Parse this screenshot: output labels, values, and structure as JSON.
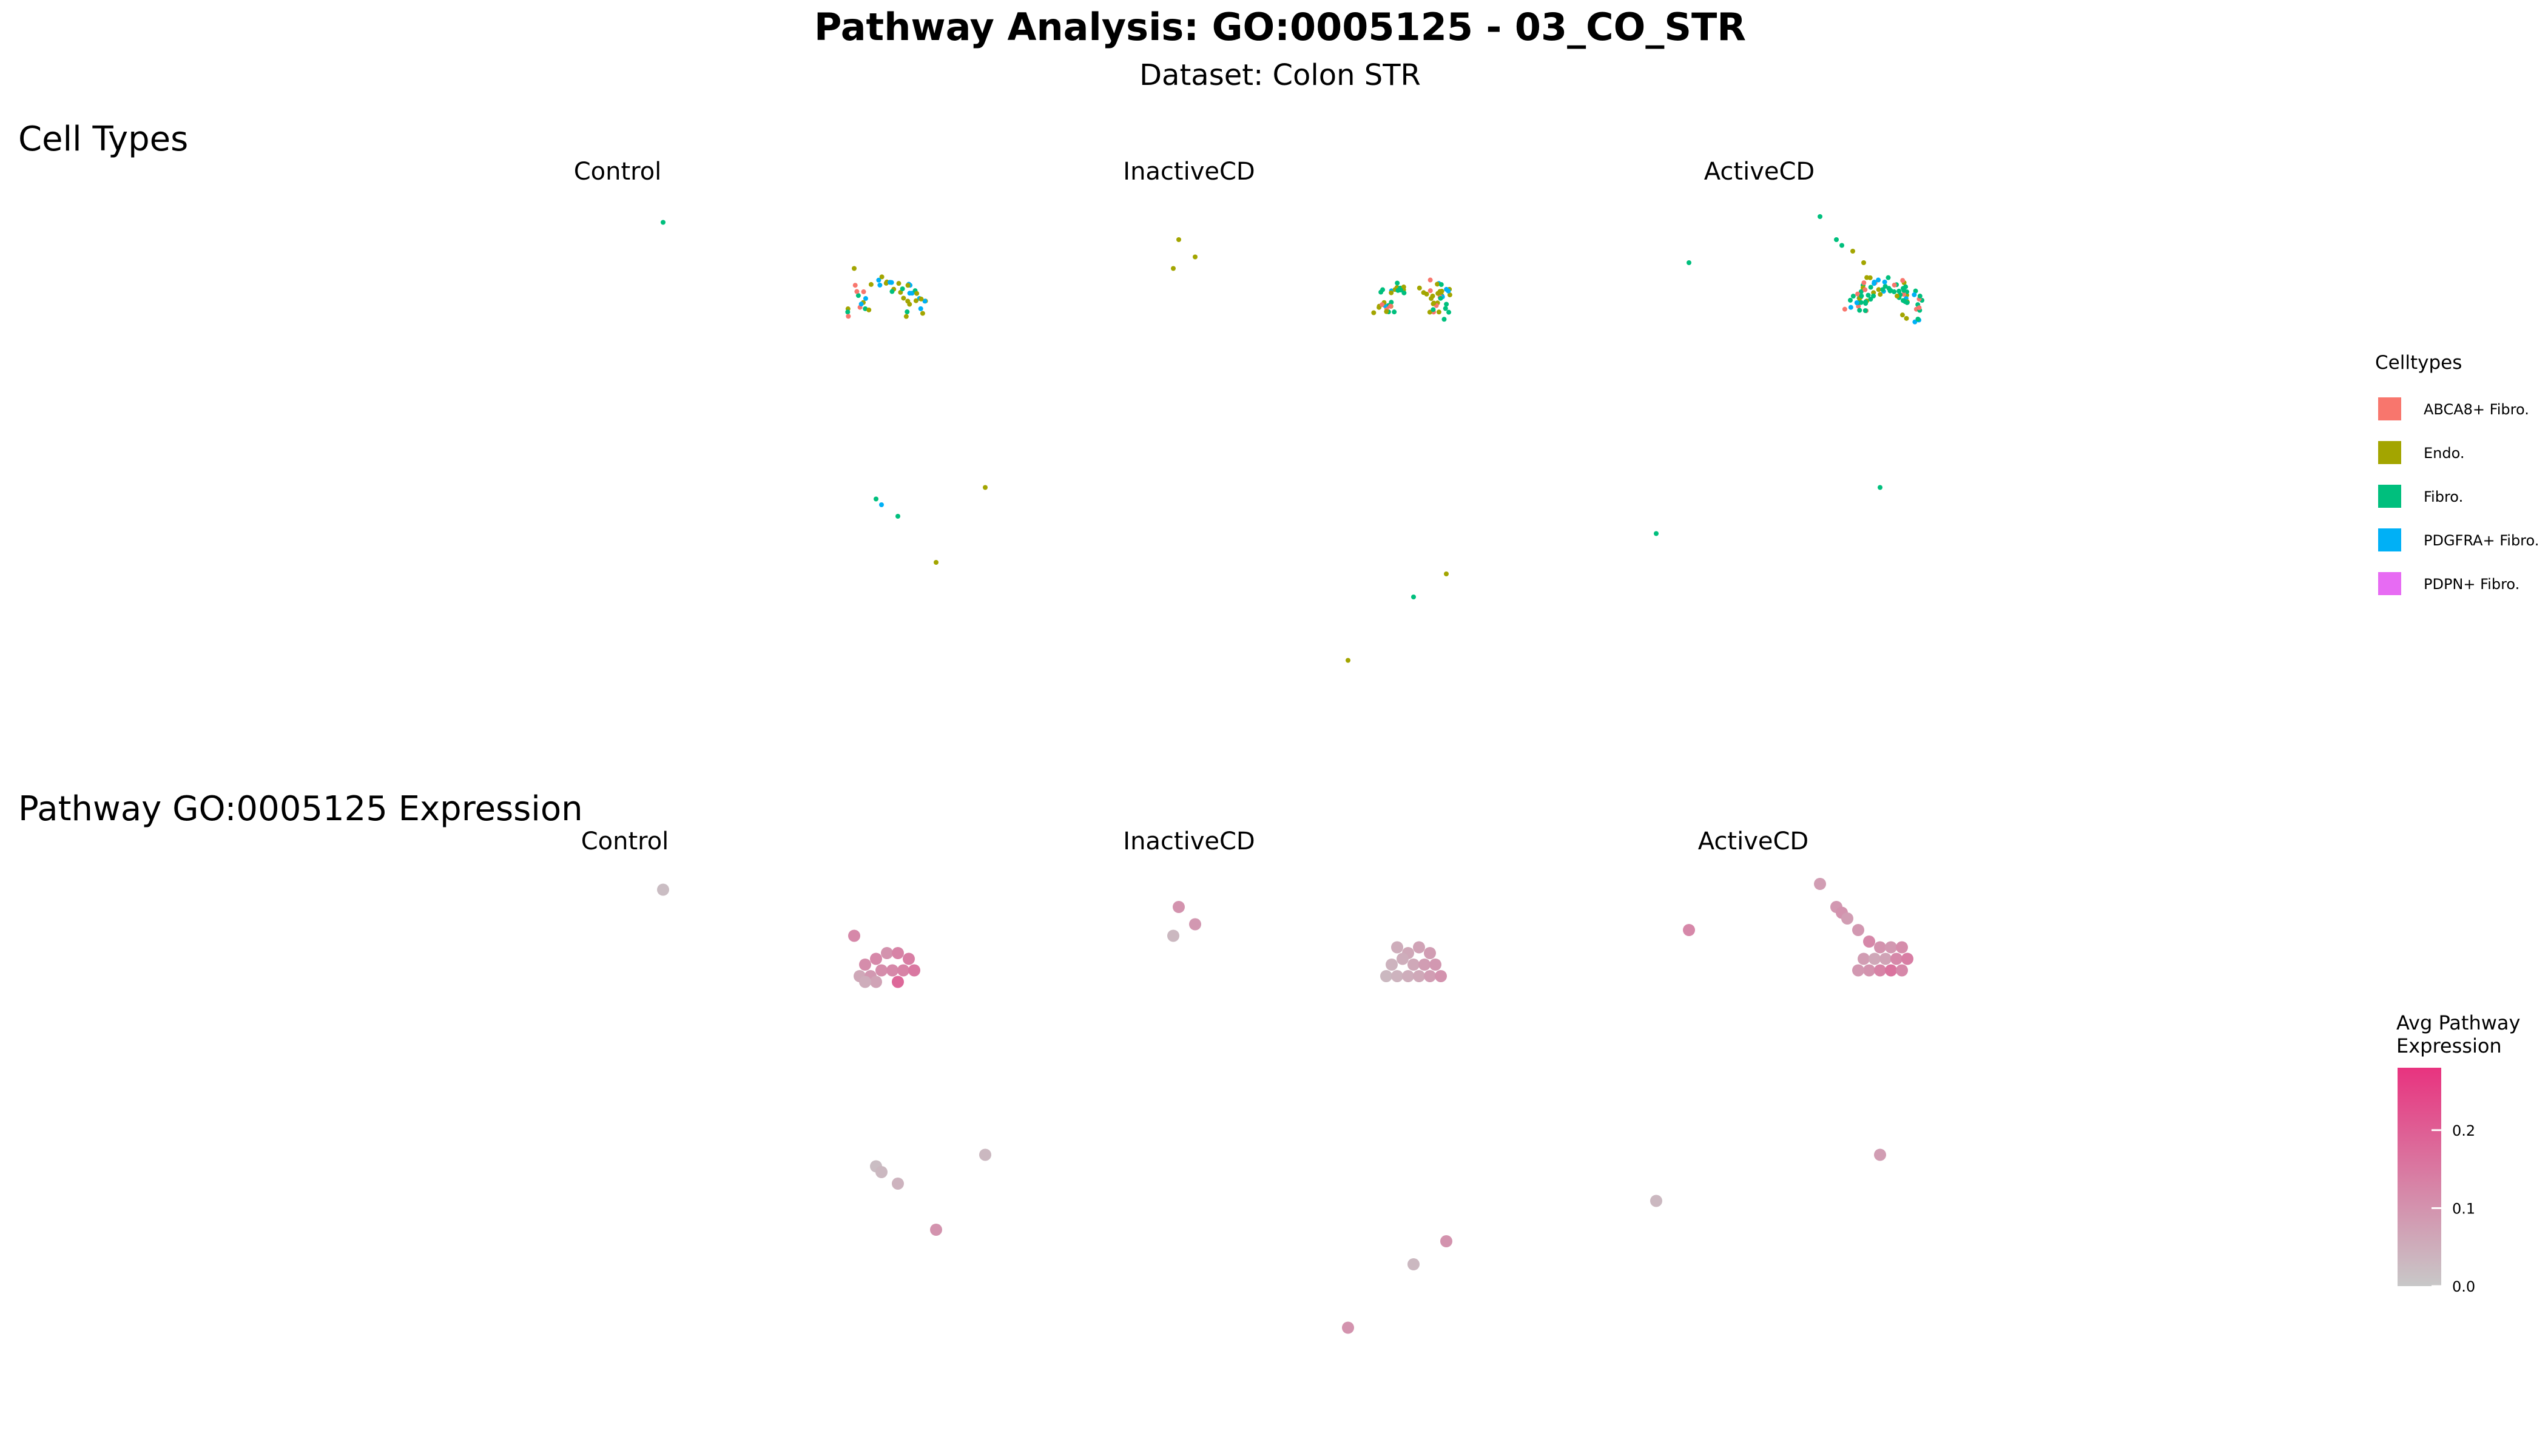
{
  "title": "Pathway Analysis: GO:0005125 - 03_CO_STR",
  "subtitle": "Dataset: Colon STR",
  "sections": {
    "celltypes": "Cell Types",
    "expression": "Pathway GO:0005125 Expression"
  },
  "facets": [
    "Control",
    "InactiveCD",
    "ActiveCD"
  ],
  "legend_celltypes": {
    "title": "Celltypes",
    "items": [
      {
        "label": "ABCA8+ Fibro.",
        "color": "#F8766D"
      },
      {
        "label": "Endo.",
        "color": "#A3A500"
      },
      {
        "label": "Fibro.",
        "color": "#00BF7D"
      },
      {
        "label": "PDGFRA+ Fibro.",
        "color": "#00B0F6"
      },
      {
        "label": "PDPN+ Fibro.",
        "color": "#E76BF3"
      }
    ]
  },
  "legend_expression": {
    "title_lines": [
      "Avg Pathway",
      "Expression"
    ],
    "ticks": [
      "0.0",
      "0.1",
      "0.2"
    ],
    "tick_values": [
      0.0,
      0.1,
      0.2
    ],
    "range": [
      0.0,
      0.28
    ],
    "low_color": "#C8C8C8",
    "high_color": "#E8337F"
  },
  "chart_data": [
    {
      "type": "scatter",
      "title": "Cell Types",
      "color_by": "Celltypes",
      "panels": [
        {
          "facet": "Control",
          "outliers": [
            {
              "x": 0.07,
              "y": 0.93,
              "celltype": "Fibro."
            },
            {
              "x": 0.42,
              "y": 0.85,
              "celltype": "Endo."
            },
            {
              "x": 0.46,
              "y": 0.45,
              "celltype": "Fibro."
            },
            {
              "x": 0.47,
              "y": 0.44,
              "celltype": "PDGFRA+ Fibro."
            },
            {
              "x": 0.5,
              "y": 0.42,
              "celltype": "Fibro."
            },
            {
              "x": 0.66,
              "y": 0.47,
              "celltype": "Endo."
            },
            {
              "x": 0.57,
              "y": 0.34,
              "celltype": "Endo."
            }
          ],
          "cluster": {
            "x": 0.48,
            "y": 0.8,
            "n": 45,
            "mix": [
              "Endo.",
              "Endo.",
              "Endo.",
              "Fibro.",
              "ABCA8+ Fibro.",
              "PDGFRA+ Fibro."
            ]
          }
        },
        {
          "facet": "InactiveCD",
          "outliers": [
            {
              "x": 0.07,
              "y": 0.9,
              "celltype": "Endo."
            },
            {
              "x": 0.1,
              "y": 0.87,
              "celltype": "Endo."
            },
            {
              "x": 0.06,
              "y": 0.85,
              "celltype": "Endo."
            },
            {
              "x": 0.5,
              "y": 0.28,
              "celltype": "Fibro."
            },
            {
              "x": 0.56,
              "y": 0.32,
              "celltype": "Endo."
            },
            {
              "x": 0.38,
              "y": 0.17,
              "celltype": "Endo."
            }
          ],
          "cluster": {
            "x": 0.5,
            "y": 0.8,
            "n": 60,
            "mix": [
              "Endo.",
              "Endo.",
              "Endo.",
              "Fibro.",
              "ABCA8+ Fibro.",
              "PDGFRA+ Fibro.",
              "Fibro."
            ]
          }
        },
        {
          "facet": "ActiveCD",
          "outliers": [
            {
              "x": 0.06,
              "y": 0.86,
              "celltype": "Fibro."
            },
            {
              "x": 0.3,
              "y": 0.94,
              "celltype": "Fibro."
            },
            {
              "x": 0.33,
              "y": 0.9,
              "celltype": "Fibro."
            },
            {
              "x": 0.34,
              "y": 0.89,
              "celltype": "Fibro."
            },
            {
              "x": 0.36,
              "y": 0.88,
              "celltype": "Endo."
            },
            {
              "x": 0.38,
              "y": 0.86,
              "celltype": "Endo."
            },
            {
              "x": 0.41,
              "y": 0.47,
              "celltype": "Fibro."
            },
            {
              "x": 0.0,
              "y": 0.39,
              "celltype": "Fibro."
            }
          ],
          "cluster": {
            "x": 0.42,
            "y": 0.8,
            "n": 80,
            "mix": [
              "Fibro.",
              "Fibro.",
              "PDGFRA+ Fibro.",
              "Fibro.",
              "Endo.",
              "ABCA8+ Fibro."
            ]
          }
        }
      ]
    },
    {
      "type": "scatter",
      "title": "Pathway GO:0005125 Expression",
      "color_by": "Avg Pathway Expression",
      "panels": [
        {
          "facet": "Control",
          "points": [
            {
              "x": 0.07,
              "y": 0.93,
              "v": 0.02
            },
            {
              "x": 0.42,
              "y": 0.85,
              "v": 0.12
            },
            {
              "x": 0.44,
              "y": 0.8,
              "v": 0.11
            },
            {
              "x": 0.46,
              "y": 0.81,
              "v": 0.12
            },
            {
              "x": 0.48,
              "y": 0.82,
              "v": 0.1
            },
            {
              "x": 0.5,
              "y": 0.82,
              "v": 0.13
            },
            {
              "x": 0.52,
              "y": 0.81,
              "v": 0.14
            },
            {
              "x": 0.43,
              "y": 0.78,
              "v": 0.06
            },
            {
              "x": 0.45,
              "y": 0.78,
              "v": 0.09
            },
            {
              "x": 0.47,
              "y": 0.79,
              "v": 0.11
            },
            {
              "x": 0.49,
              "y": 0.79,
              "v": 0.12
            },
            {
              "x": 0.51,
              "y": 0.79,
              "v": 0.13
            },
            {
              "x": 0.53,
              "y": 0.79,
              "v": 0.15
            },
            {
              "x": 0.46,
              "y": 0.77,
              "v": 0.07
            },
            {
              "x": 0.5,
              "y": 0.77,
              "v": 0.18
            },
            {
              "x": 0.44,
              "y": 0.77,
              "v": 0.05
            },
            {
              "x": 0.46,
              "y": 0.45,
              "v": 0.02
            },
            {
              "x": 0.47,
              "y": 0.44,
              "v": 0.03
            },
            {
              "x": 0.5,
              "y": 0.42,
              "v": 0.04
            },
            {
              "x": 0.66,
              "y": 0.47,
              "v": 0.03
            },
            {
              "x": 0.57,
              "y": 0.34,
              "v": 0.1
            }
          ]
        },
        {
          "facet": "InactiveCD",
          "points": [
            {
              "x": 0.07,
              "y": 0.9,
              "v": 0.1
            },
            {
              "x": 0.1,
              "y": 0.87,
              "v": 0.09
            },
            {
              "x": 0.06,
              "y": 0.85,
              "v": 0.03
            },
            {
              "x": 0.47,
              "y": 0.83,
              "v": 0.05
            },
            {
              "x": 0.49,
              "y": 0.82,
              "v": 0.06
            },
            {
              "x": 0.51,
              "y": 0.83,
              "v": 0.07
            },
            {
              "x": 0.53,
              "y": 0.82,
              "v": 0.08
            },
            {
              "x": 0.46,
              "y": 0.8,
              "v": 0.04
            },
            {
              "x": 0.48,
              "y": 0.81,
              "v": 0.05
            },
            {
              "x": 0.5,
              "y": 0.8,
              "v": 0.06
            },
            {
              "x": 0.52,
              "y": 0.8,
              "v": 0.08
            },
            {
              "x": 0.54,
              "y": 0.8,
              "v": 0.09
            },
            {
              "x": 0.45,
              "y": 0.78,
              "v": 0.03
            },
            {
              "x": 0.47,
              "y": 0.78,
              "v": 0.04
            },
            {
              "x": 0.49,
              "y": 0.78,
              "v": 0.05
            },
            {
              "x": 0.51,
              "y": 0.78,
              "v": 0.06
            },
            {
              "x": 0.53,
              "y": 0.78,
              "v": 0.08
            },
            {
              "x": 0.55,
              "y": 0.78,
              "v": 0.1
            },
            {
              "x": 0.5,
              "y": 0.28,
              "v": 0.03
            },
            {
              "x": 0.56,
              "y": 0.32,
              "v": 0.1
            },
            {
              "x": 0.38,
              "y": 0.17,
              "v": 0.1
            }
          ]
        },
        {
          "facet": "ActiveCD",
          "points": [
            {
              "x": 0.06,
              "y": 0.86,
              "v": 0.12
            },
            {
              "x": 0.3,
              "y": 0.94,
              "v": 0.08
            },
            {
              "x": 0.33,
              "y": 0.9,
              "v": 0.09
            },
            {
              "x": 0.34,
              "y": 0.89,
              "v": 0.1
            },
            {
              "x": 0.35,
              "y": 0.88,
              "v": 0.08
            },
            {
              "x": 0.37,
              "y": 0.86,
              "v": 0.09
            },
            {
              "x": 0.39,
              "y": 0.84,
              "v": 0.12
            },
            {
              "x": 0.41,
              "y": 0.83,
              "v": 0.1
            },
            {
              "x": 0.43,
              "y": 0.83,
              "v": 0.09
            },
            {
              "x": 0.45,
              "y": 0.83,
              "v": 0.11
            },
            {
              "x": 0.38,
              "y": 0.81,
              "v": 0.08
            },
            {
              "x": 0.4,
              "y": 0.81,
              "v": 0.06
            },
            {
              "x": 0.42,
              "y": 0.81,
              "v": 0.07
            },
            {
              "x": 0.44,
              "y": 0.81,
              "v": 0.12
            },
            {
              "x": 0.46,
              "y": 0.81,
              "v": 0.14
            },
            {
              "x": 0.39,
              "y": 0.79,
              "v": 0.1
            },
            {
              "x": 0.41,
              "y": 0.79,
              "v": 0.13
            },
            {
              "x": 0.43,
              "y": 0.79,
              "v": 0.16
            },
            {
              "x": 0.45,
              "y": 0.79,
              "v": 0.12
            },
            {
              "x": 0.37,
              "y": 0.79,
              "v": 0.09
            },
            {
              "x": 0.41,
              "y": 0.47,
              "v": 0.08
            },
            {
              "x": 0.0,
              "y": 0.39,
              "v": 0.03
            }
          ]
        }
      ]
    }
  ]
}
